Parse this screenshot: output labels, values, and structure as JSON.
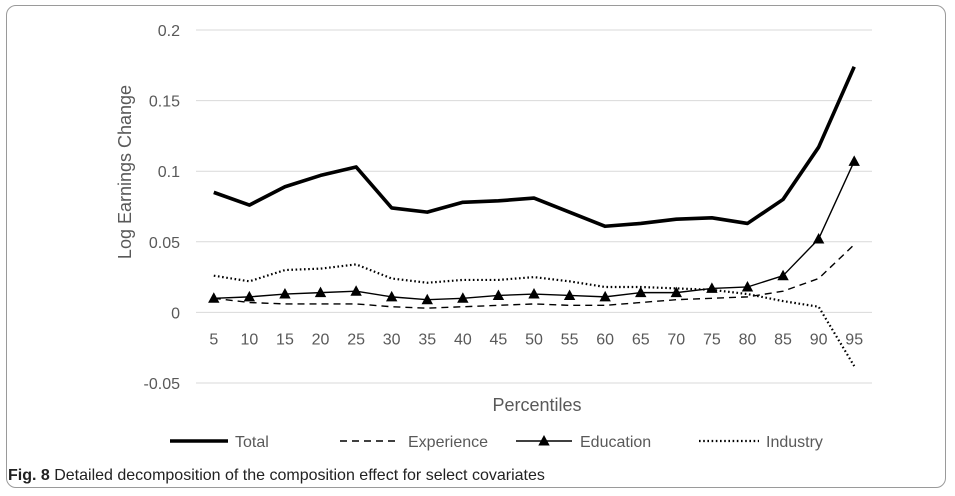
{
  "chart_data": {
    "type": "line",
    "title": "",
    "xlabel": "Percentiles",
    "ylabel": "Log Earnings Change",
    "categories": [
      "5",
      "10",
      "15",
      "20",
      "25",
      "30",
      "35",
      "40",
      "45",
      "50",
      "55",
      "60",
      "65",
      "70",
      "75",
      "80",
      "85",
      "90",
      "95"
    ],
    "ylim": [
      -0.05,
      0.2
    ],
    "yticks": [
      -0.05,
      0,
      0.05,
      0.1,
      0.15,
      0.2
    ],
    "ytick_labels": [
      "-0.05",
      "0",
      "0.05",
      "0.1",
      "0.15",
      "0.2"
    ],
    "grid": true,
    "legend_position": "bottom",
    "series": [
      {
        "name": "Total",
        "style": "solid-thick",
        "color": "#000000",
        "values": [
          0.085,
          0.076,
          0.089,
          0.097,
          0.103,
          0.074,
          0.071,
          0.078,
          0.079,
          0.081,
          0.071,
          0.061,
          0.063,
          0.066,
          0.067,
          0.063,
          0.08,
          0.117,
          0.174
        ]
      },
      {
        "name": "Experience",
        "style": "dashed",
        "color": "#000000",
        "values": [
          0.01,
          0.007,
          0.006,
          0.006,
          0.006,
          0.004,
          0.003,
          0.004,
          0.005,
          0.006,
          0.005,
          0.005,
          0.007,
          0.009,
          0.01,
          0.011,
          0.015,
          0.024,
          0.048
        ]
      },
      {
        "name": "Education",
        "style": "solid-triangle",
        "color": "#000000",
        "values": [
          0.01,
          0.011,
          0.013,
          0.014,
          0.015,
          0.011,
          0.009,
          0.01,
          0.012,
          0.013,
          0.012,
          0.011,
          0.014,
          0.014,
          0.017,
          0.018,
          0.026,
          0.052,
          0.107
        ]
      },
      {
        "name": "Industry",
        "style": "dotted",
        "color": "#000000",
        "values": [
          0.026,
          0.022,
          0.03,
          0.031,
          0.034,
          0.024,
          0.021,
          0.023,
          0.023,
          0.025,
          0.022,
          0.018,
          0.018,
          0.017,
          0.016,
          0.013,
          0.008,
          0.004,
          -0.038
        ]
      }
    ]
  },
  "caption": {
    "label": "Fig. 8",
    "text": " Detailed decomposition of the composition effect for select covariates"
  },
  "colors": {
    "grid": "#d9d9d9",
    "text": "#595959",
    "line": "#000000",
    "border": "#9a9a9a"
  }
}
